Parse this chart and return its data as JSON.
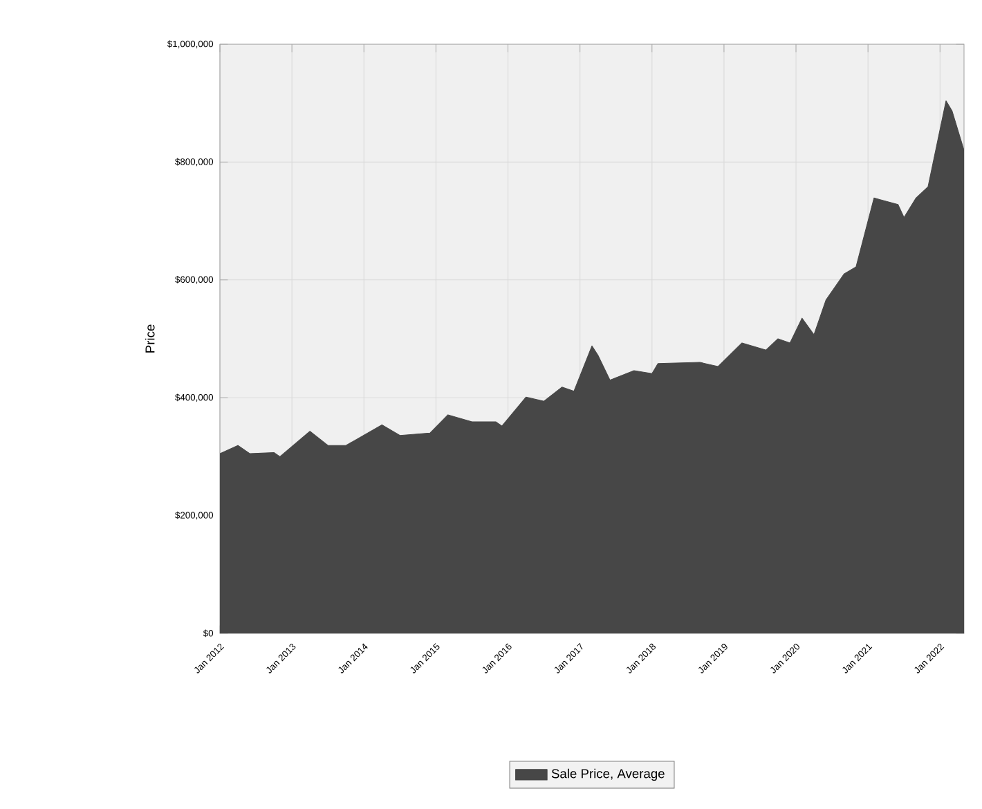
{
  "chart_data": {
    "type": "area",
    "ylabel": "Price",
    "x": [
      "2012-01",
      "2012-04",
      "2012-06",
      "2012-10",
      "2012-11",
      "2013-04",
      "2013-07",
      "2013-10",
      "2014-04",
      "2014-07",
      "2014-12",
      "2015-03",
      "2015-07",
      "2015-11",
      "2015-12",
      "2016-04",
      "2016-07",
      "2016-10",
      "2016-12",
      "2017-03",
      "2017-04",
      "2017-06",
      "2017-10",
      "2018-01",
      "2018-02",
      "2018-09",
      "2018-12",
      "2019-04",
      "2019-08",
      "2019-10",
      "2019-12",
      "2020-02",
      "2020-04",
      "2020-06",
      "2020-09",
      "2020-11",
      "2021-02",
      "2021-06",
      "2021-07",
      "2021-09",
      "2021-11",
      "2022-02",
      "2022-03",
      "2022-05"
    ],
    "series": [
      {
        "name": "Sale Price, Average",
        "color": "#474747",
        "values": [
          305000,
          319000,
          305000,
          307000,
          300000,
          343000,
          319000,
          319000,
          354000,
          336000,
          340000,
          371000,
          359000,
          359000,
          352000,
          401000,
          394000,
          418000,
          411000,
          488000,
          472000,
          430000,
          446000,
          441000,
          458000,
          460000,
          453000,
          493000,
          481000,
          500000,
          493000,
          535000,
          507000,
          566000,
          610000,
          622000,
          739000,
          728000,
          706000,
          739000,
          758000,
          904000,
          887000,
          820000
        ]
      }
    ],
    "xlim": [
      "2012-01",
      "2022-05"
    ],
    "xticks": [
      {
        "value": "2012-01",
        "label": "Jan 2012"
      },
      {
        "value": "2013-01",
        "label": "Jan 2013"
      },
      {
        "value": "2014-01",
        "label": "Jan 2014"
      },
      {
        "value": "2015-01",
        "label": "Jan 2015"
      },
      {
        "value": "2016-01",
        "label": "Jan 2016"
      },
      {
        "value": "2017-01",
        "label": "Jan 2017"
      },
      {
        "value": "2018-01",
        "label": "Jan 2018"
      },
      {
        "value": "2019-01",
        "label": "Jan 2019"
      },
      {
        "value": "2020-01",
        "label": "Jan 2020"
      },
      {
        "value": "2021-01",
        "label": "Jan 2021"
      },
      {
        "value": "2022-01",
        "label": "Jan 2022"
      }
    ],
    "ylim": [
      0,
      1000000
    ],
    "yticks": [
      {
        "value": 0,
        "label": "$0"
      },
      {
        "value": 200000,
        "label": "$200,000"
      },
      {
        "value": 400000,
        "label": "$400,000"
      },
      {
        "value": 600000,
        "label": "$600,000"
      },
      {
        "value": 800000,
        "label": "$800,000"
      },
      {
        "value": 1000000,
        "label": "$1,000,000"
      }
    ],
    "grid": true,
    "legend": "bottom"
  }
}
